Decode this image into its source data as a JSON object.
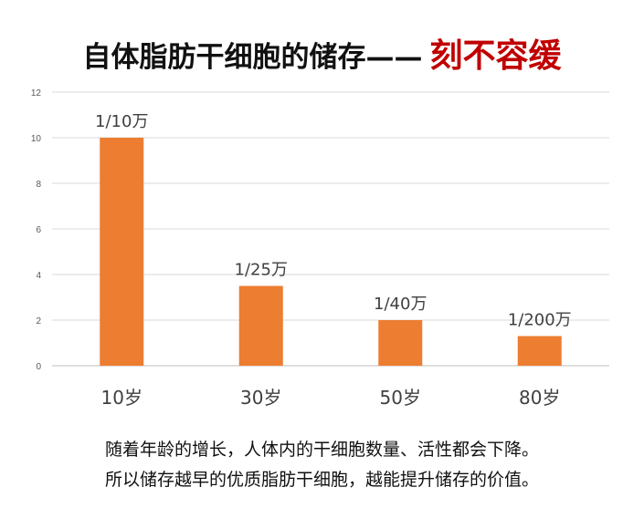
{
  "title": {
    "main": "自体脂肪干细胞的储存——",
    "accent": "刻不容缓"
  },
  "chart_data": {
    "type": "bar",
    "categories": [
      "10岁",
      "30岁",
      "50岁",
      "80岁"
    ],
    "values": [
      10,
      3.5,
      2,
      1.3
    ],
    "data_labels": [
      "1/10万",
      "1/25万",
      "1/40万",
      "1/200万"
    ],
    "yticks": [
      "0",
      "2",
      "4",
      "6",
      "8",
      "10",
      "12"
    ],
    "ylim": [
      0,
      12
    ],
    "grid": true,
    "bar_color": "#ed7d31"
  },
  "captions": [
    "随着年龄的增长，人体内的干细胞数量、活性都会下降。",
    "所以储存越早的优质脂肪干细胞，越能提升储存的价值。"
  ]
}
